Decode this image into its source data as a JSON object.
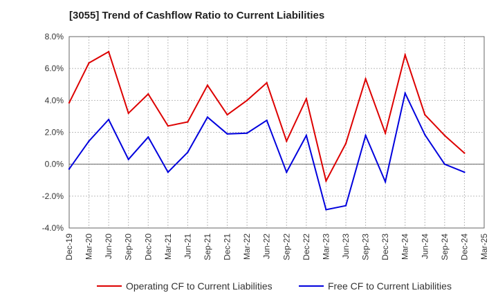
{
  "chart_data": {
    "type": "line",
    "title": "[3055]  Trend of Cashflow Ratio to Current Liabilities",
    "xlabel": "",
    "ylabel": "",
    "ylim": [
      -4.0,
      8.0
    ],
    "yticks": [
      "8.0%",
      "6.0%",
      "4.0%",
      "2.0%",
      "0.0%",
      "-2.0%",
      "-4.0%"
    ],
    "categories": [
      "Dec-19",
      "Mar-20",
      "Jun-20",
      "Sep-20",
      "Dec-20",
      "Mar-21",
      "Jun-21",
      "Sep-21",
      "Dec-21",
      "Mar-22",
      "Jun-22",
      "Sep-22",
      "Dec-22",
      "Mar-23",
      "Jun-23",
      "Sep-23",
      "Dec-23",
      "Mar-24",
      "Jun-24",
      "Sep-24",
      "Dec-24",
      "Mar-25"
    ],
    "grid": true,
    "legend_position": "bottom",
    "series": [
      {
        "name": "Operating CF to Current Liabilities",
        "color": "#dd0000",
        "values": [
          3.85,
          6.35,
          7.05,
          3.2,
          4.4,
          2.4,
          2.65,
          4.95,
          3.1,
          4.0,
          5.1,
          1.45,
          4.1,
          -1.05,
          1.3,
          5.35,
          1.95,
          6.85,
          3.1,
          1.8,
          0.7,
          null
        ]
      },
      {
        "name": "Free CF to Current Liabilities",
        "color": "#0000dd",
        "values": [
          -0.3,
          1.45,
          2.8,
          0.3,
          1.7,
          -0.5,
          0.75,
          2.95,
          1.9,
          1.95,
          2.75,
          -0.5,
          1.8,
          -2.85,
          -2.6,
          1.8,
          -1.1,
          4.45,
          1.85,
          0.0,
          -0.5,
          null
        ]
      }
    ]
  }
}
